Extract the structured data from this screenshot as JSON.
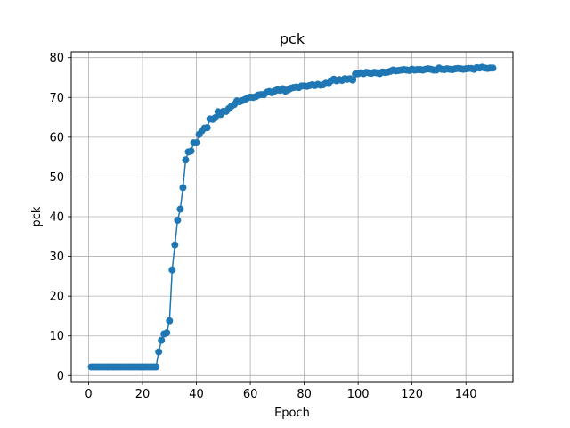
{
  "chart_data": {
    "type": "line",
    "title": "pck",
    "xlabel": "Epoch",
    "ylabel": "pck",
    "xlim": [
      -6.45,
      157.45
    ],
    "ylim": [
      -1.5,
      81.5
    ],
    "xticks": [
      0,
      20,
      40,
      60,
      80,
      100,
      120,
      140
    ],
    "yticks": [
      0,
      10,
      20,
      30,
      40,
      50,
      60,
      70,
      80
    ],
    "grid": true,
    "legend": "none",
    "series": [
      {
        "color": "#1f77b4",
        "marker": "circle",
        "x": [
          1,
          2,
          3,
          4,
          5,
          6,
          7,
          8,
          9,
          10,
          11,
          12,
          13,
          14,
          15,
          16,
          17,
          18,
          19,
          20,
          21,
          22,
          23,
          24,
          25,
          26,
          27,
          28,
          29,
          30,
          31,
          32,
          33,
          34,
          35,
          36,
          37,
          38,
          39,
          40,
          41,
          42,
          43,
          44,
          45,
          46,
          47,
          48,
          49,
          50,
          51,
          52,
          53,
          54,
          55,
          56,
          57,
          58,
          59,
          60,
          61,
          62,
          63,
          64,
          65,
          66,
          67,
          68,
          69,
          70,
          71,
          72,
          73,
          74,
          75,
          76,
          77,
          78,
          79,
          80,
          81,
          82,
          83,
          84,
          85,
          86,
          87,
          88,
          89,
          90,
          91,
          92,
          93,
          94,
          95,
          96,
          97,
          98,
          99,
          100,
          101,
          102,
          103,
          104,
          105,
          106,
          107,
          108,
          109,
          110,
          111,
          112,
          113,
          114,
          115,
          116,
          117,
          118,
          119,
          120,
          121,
          122,
          123,
          124,
          125,
          126,
          127,
          128,
          129,
          130,
          131,
          132,
          133,
          134,
          135,
          136,
          137,
          138,
          139,
          140,
          141,
          142,
          143,
          144,
          145,
          146,
          147,
          148,
          149,
          150
        ],
        "y": [
          2.2,
          2.2,
          2.2,
          2.2,
          2.2,
          2.2,
          2.2,
          2.2,
          2.2,
          2.2,
          2.2,
          2.2,
          2.2,
          2.2,
          2.2,
          2.2,
          2.2,
          2.2,
          2.2,
          2.2,
          2.2,
          2.2,
          2.2,
          2.2,
          2.2,
          6.0,
          8.9,
          10.5,
          10.8,
          13.8,
          26.6,
          32.9,
          39.1,
          41.9,
          47.3,
          54.3,
          56.3,
          56.5,
          58.6,
          58.6,
          60.7,
          61.6,
          62.3,
          62.4,
          64.6,
          64.5,
          64.9,
          66.4,
          65.7,
          66.5,
          66.5,
          67.2,
          67.8,
          68.2,
          69.1,
          68.9,
          69.2,
          69.5,
          69.9,
          70.1,
          70.0,
          70.2,
          70.6,
          70.7,
          70.7,
          71.3,
          71.5,
          71.2,
          71.6,
          71.9,
          71.8,
          72.2,
          71.6,
          71.9,
          72.3,
          72.5,
          72.6,
          72.5,
          72.9,
          72.9,
          72.8,
          73.0,
          73.2,
          73.0,
          73.3,
          73.1,
          73.2,
          73.6,
          73.5,
          74.2,
          74.6,
          74.2,
          74.5,
          74.3,
          74.7,
          74.6,
          74.7,
          74.4,
          75.9,
          76.0,
          76.2,
          76.0,
          76.3,
          76.2,
          76.1,
          76.3,
          76.2,
          76.0,
          76.4,
          76.3,
          76.4,
          76.6,
          76.9,
          76.7,
          76.8,
          76.9,
          77.0,
          76.9,
          76.8,
          77.1,
          76.9,
          77.0,
          77.0,
          76.9,
          77.1,
          77.2,
          77.1,
          76.9,
          76.9,
          77.4,
          77.1,
          77.0,
          77.2,
          77.1,
          77.0,
          77.2,
          77.3,
          77.2,
          77.1,
          77.2,
          77.3,
          77.3,
          77.1,
          77.5,
          77.4,
          77.6,
          77.4,
          77.3,
          77.4,
          77.4
        ]
      }
    ]
  }
}
